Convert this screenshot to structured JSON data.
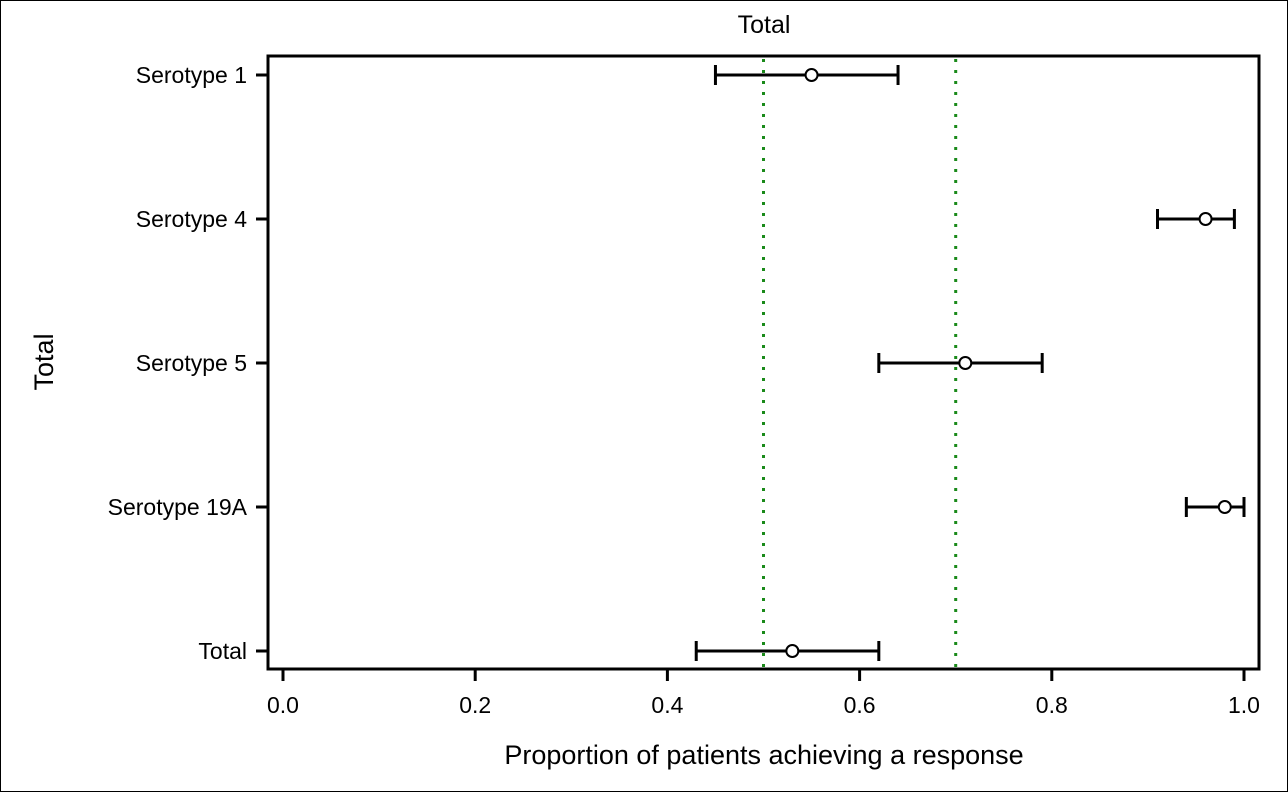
{
  "chart_data": {
    "type": "scatter",
    "subtype": "forest-plot",
    "title": "Total",
    "xlabel": "Proportion of patients achieving a response",
    "ylabel": "Total",
    "xlim": [
      0.0,
      1.0
    ],
    "xticks": [
      "0.0",
      "0.2",
      "0.4",
      "0.6",
      "0.8",
      "1.0"
    ],
    "grid": false,
    "categories": [
      "Serotype 1",
      "Serotype 4",
      "Serotype 5",
      "Serotype 19A",
      "Total"
    ],
    "estimates": [
      0.55,
      0.96,
      0.71,
      0.98,
      0.53
    ],
    "ci_lower": [
      0.45,
      0.91,
      0.62,
      0.94,
      0.43
    ],
    "ci_upper": [
      0.64,
      0.99,
      0.79,
      1.0,
      0.62
    ],
    "reference_lines": [
      0.5,
      0.7
    ],
    "reference_line_color": "#1a8a1a",
    "marker_color": "#000000"
  }
}
